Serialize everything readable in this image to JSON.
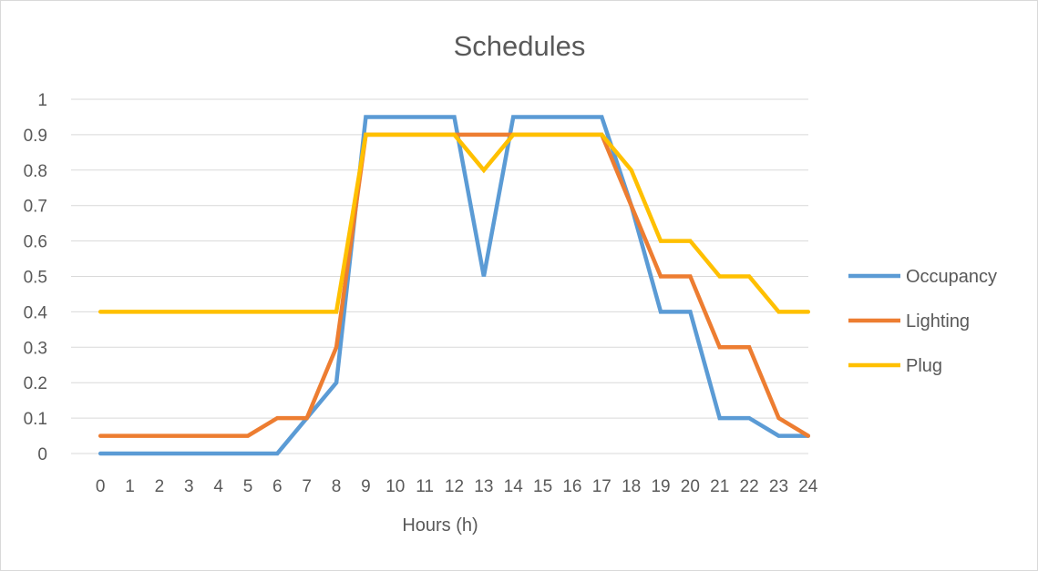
{
  "chart_data": {
    "type": "line",
    "title": "Schedules",
    "xlabel": "Hours (h)",
    "ylabel": "",
    "x": [
      0,
      1,
      2,
      3,
      4,
      5,
      6,
      7,
      8,
      9,
      10,
      11,
      12,
      13,
      14,
      15,
      16,
      17,
      18,
      19,
      20,
      21,
      22,
      23,
      24
    ],
    "yticks": [
      "0",
      "0.1",
      "0.2",
      "0.3",
      "0.4",
      "0.5",
      "0.6",
      "0.7",
      "0.8",
      "0.9",
      "1"
    ],
    "ylim": [
      0,
      1
    ],
    "grid": true,
    "legend_position": "right",
    "series": [
      {
        "name": "Occupancy",
        "color": "#5b9bd5",
        "values": [
          0,
          0,
          0,
          0,
          0,
          0,
          0,
          0.1,
          0.2,
          0.95,
          0.95,
          0.95,
          0.95,
          0.5,
          0.95,
          0.95,
          0.95,
          0.95,
          0.7,
          0.4,
          0.4,
          0.1,
          0.1,
          0.05,
          0.05
        ]
      },
      {
        "name": "Lighting",
        "color": "#ed7d31",
        "values": [
          0.05,
          0.05,
          0.05,
          0.05,
          0.05,
          0.05,
          0.1,
          0.1,
          0.3,
          0.9,
          0.9,
          0.9,
          0.9,
          0.9,
          0.9,
          0.9,
          0.9,
          0.9,
          0.7,
          0.5,
          0.5,
          0.3,
          0.3,
          0.1,
          0.05
        ]
      },
      {
        "name": "Plug",
        "color": "#ffc000",
        "values": [
          0.4,
          0.4,
          0.4,
          0.4,
          0.4,
          0.4,
          0.4,
          0.4,
          0.4,
          0.9,
          0.9,
          0.9,
          0.9,
          0.8,
          0.9,
          0.9,
          0.9,
          0.9,
          0.8,
          0.6,
          0.6,
          0.5,
          0.5,
          0.4,
          0.4
        ]
      }
    ]
  }
}
